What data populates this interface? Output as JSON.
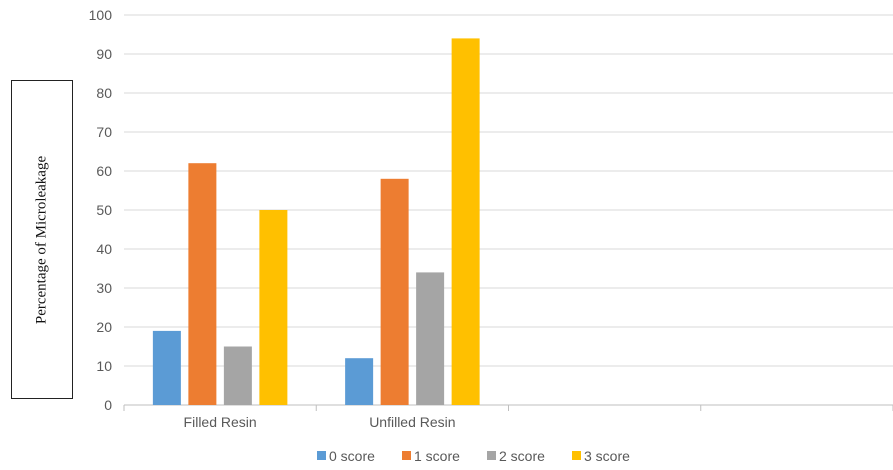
{
  "chart_data": {
    "type": "bar",
    "title": "",
    "xlabel": "",
    "ylabel": "Percentage of Microleakage",
    "categories": [
      "Filled Resin",
      "Unfilled Resin",
      "",
      ""
    ],
    "series": [
      {
        "name": "0 score",
        "color": "#5b9bd5",
        "values": [
          19,
          12,
          null,
          null
        ]
      },
      {
        "name": "1 score",
        "color": "#ed7d31",
        "values": [
          62,
          58,
          null,
          null
        ]
      },
      {
        "name": "2 score",
        "color": "#a5a5a5",
        "values": [
          15,
          34,
          null,
          null
        ]
      },
      {
        "name": "3 score",
        "color": "#ffc000",
        "values": [
          50,
          94,
          null,
          null
        ]
      }
    ],
    "ylim": [
      0,
      100
    ],
    "yticks": [
      0,
      10,
      20,
      30,
      40,
      50,
      60,
      70,
      80,
      90,
      100
    ],
    "grid": true,
    "legend_position": "bottom"
  }
}
